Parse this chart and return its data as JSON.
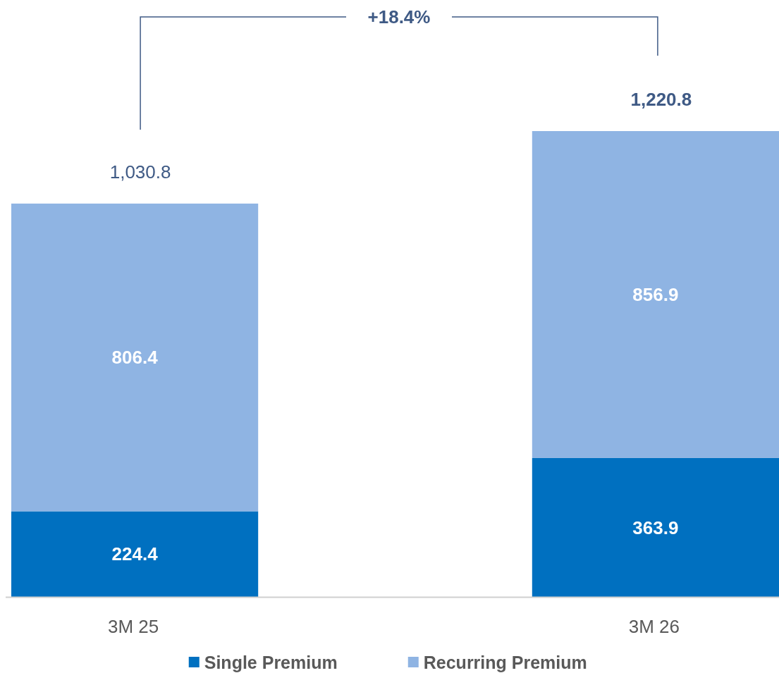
{
  "chart_data": {
    "type": "bar",
    "stacked": true,
    "categories": [
      "3M 25",
      "3M 26"
    ],
    "series": [
      {
        "name": "Single Premium",
        "color": "#0070c0",
        "values": [
          224.4,
          363.9
        ]
      },
      {
        "name": "Recurring Premium",
        "color": "#8fb4e3",
        "values": [
          806.4,
          856.9
        ]
      }
    ],
    "data_labels": true,
    "totals": [
      "1,030.8",
      "1,220.8"
    ],
    "annotations": [
      "+18.4%"
    ],
    "legend": "bottom"
  }
}
